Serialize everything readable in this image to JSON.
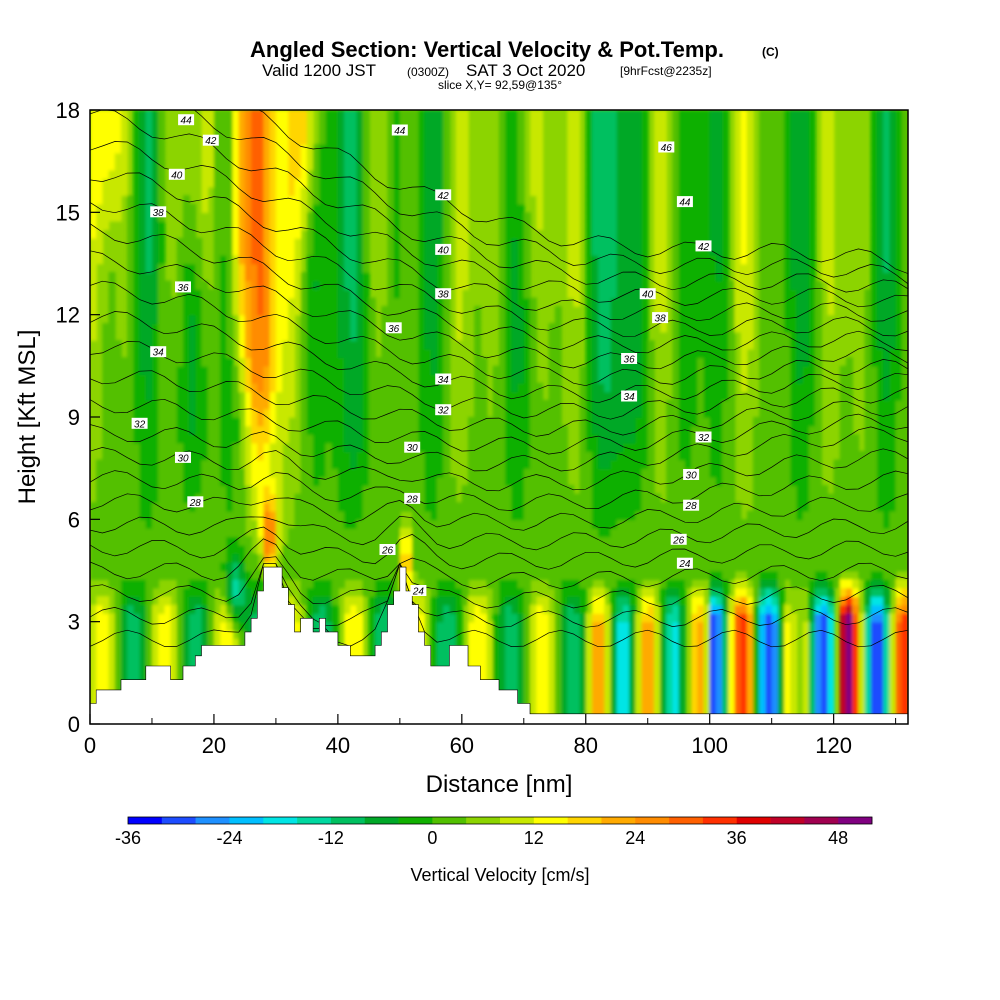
{
  "header": {
    "title": "Angled Section: Vertical Velocity & Pot.Temp.",
    "title_units": "(C)",
    "valid_prefix": "Valid 1200 JST",
    "valid_utc": "(0300Z)",
    "valid_date": "SAT 3 Oct 2020",
    "forecast": "[9hrFcst@2235z]",
    "slice": "slice X,Y= 92,59@135°"
  },
  "chart_data": {
    "type": "heatmap",
    "xlabel": "Distance [nm]",
    "ylabel": "Height [Kft MSL]",
    "xlim": [
      0,
      132
    ],
    "ylim": [
      0,
      18
    ],
    "x_ticks": [
      0,
      20,
      40,
      60,
      80,
      100,
      120
    ],
    "y_ticks": [
      0,
      3,
      6,
      9,
      12,
      15,
      18
    ],
    "grid": false,
    "fill_variable": "Vertical Velocity",
    "contour_variable": "Potential Temperature",
    "colorbar": {
      "label": "Vertical Velocity [cm/s]",
      "min": -36,
      "max": 52,
      "step": 4,
      "tick_values": [
        -36,
        -24,
        -12,
        0,
        12,
        24,
        36,
        48
      ],
      "colors": [
        "#0000ff",
        "#1d4cff",
        "#1e90ff",
        "#00bfff",
        "#00e5e5",
        "#00d8a0",
        "#00c060",
        "#00a828",
        "#11b000",
        "#52c000",
        "#8cd400",
        "#c8e800",
        "#ffff00",
        "#ffd500",
        "#ffaa00",
        "#ff8c00",
        "#ff6000",
        "#ff3000",
        "#e00000",
        "#c00028",
        "#a00050",
        "#800080"
      ]
    },
    "contour_labels": [
      {
        "text": "44",
        "x": 15.5,
        "y": 17.7
      },
      {
        "text": "42",
        "x": 19.5,
        "y": 17.1
      },
      {
        "text": "40",
        "x": 14,
        "y": 16.1
      },
      {
        "text": "38",
        "x": 11,
        "y": 15.0
      },
      {
        "text": "36",
        "x": 15,
        "y": 12.8
      },
      {
        "text": "34",
        "x": 11,
        "y": 10.9
      },
      {
        "text": "32",
        "x": 8,
        "y": 8.8
      },
      {
        "text": "30",
        "x": 15,
        "y": 7.8
      },
      {
        "text": "28",
        "x": 17,
        "y": 6.5
      },
      {
        "text": "44",
        "x": 50,
        "y": 17.4
      },
      {
        "text": "42",
        "x": 57,
        "y": 15.5
      },
      {
        "text": "40",
        "x": 57,
        "y": 13.9
      },
      {
        "text": "38",
        "x": 57,
        "y": 12.6
      },
      {
        "text": "36",
        "x": 49,
        "y": 11.6
      },
      {
        "text": "34",
        "x": 57,
        "y": 10.1
      },
      {
        "text": "32",
        "x": 57,
        "y": 9.2
      },
      {
        "text": "30",
        "x": 52,
        "y": 8.1
      },
      {
        "text": "28",
        "x": 52,
        "y": 6.6
      },
      {
        "text": "26",
        "x": 48,
        "y": 5.1
      },
      {
        "text": "24",
        "x": 53,
        "y": 3.9
      },
      {
        "text": "46",
        "x": 93,
        "y": 16.9
      },
      {
        "text": "44",
        "x": 96,
        "y": 15.3
      },
      {
        "text": "42",
        "x": 99,
        "y": 14.0
      },
      {
        "text": "40",
        "x": 90,
        "y": 12.6
      },
      {
        "text": "38",
        "x": 92,
        "y": 11.9
      },
      {
        "text": "36",
        "x": 87,
        "y": 10.7
      },
      {
        "text": "34",
        "x": 87,
        "y": 9.6
      },
      {
        "text": "32",
        "x": 99,
        "y": 8.4
      },
      {
        "text": "30",
        "x": 97,
        "y": 7.3
      },
      {
        "text": "28",
        "x": 97,
        "y": 6.4
      },
      {
        "text": "26",
        "x": 95,
        "y": 5.4
      },
      {
        "text": "24",
        "x": 96,
        "y": 4.7
      }
    ]
  }
}
